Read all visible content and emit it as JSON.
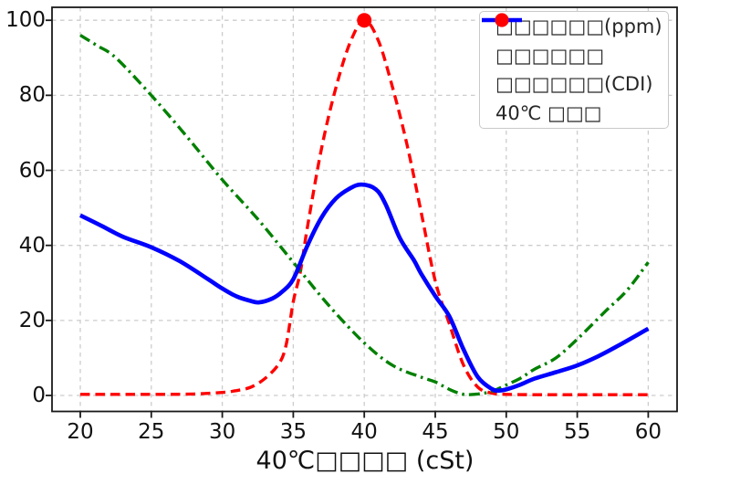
{
  "chart_data": {
    "type": "line",
    "xlabel": "40℃□□□□ (cSt)",
    "x_ticks": [
      "20",
      "25",
      "30",
      "35",
      "40",
      "45",
      "50",
      "55",
      "60"
    ],
    "y_ticks": [
      "0",
      "20",
      "40",
      "60",
      "80",
      "100"
    ],
    "xlim": [
      18,
      62
    ],
    "ylim": [
      -4,
      103.5
    ],
    "grid": true,
    "grid_color": "#cccccc",
    "legend_position": "upper-right",
    "series": [
      {
        "name": "□□□□□□(ppm)",
        "color": "#ff0000",
        "linestyle": "dashed",
        "points": [
          [
            20,
            0.3
          ],
          [
            22,
            0.3
          ],
          [
            24,
            0.3
          ],
          [
            26,
            0.3
          ],
          [
            28,
            0.4
          ],
          [
            30,
            0.8
          ],
          [
            31,
            1.3
          ],
          [
            32,
            2.2
          ],
          [
            33,
            4.5
          ],
          [
            34,
            8.5
          ],
          [
            34.5,
            13.5
          ],
          [
            35,
            25
          ],
          [
            35.5,
            33
          ],
          [
            36,
            45
          ],
          [
            37,
            66
          ],
          [
            38,
            82
          ],
          [
            39,
            94
          ],
          [
            40,
            100
          ],
          [
            41,
            94.5
          ],
          [
            42,
            82
          ],
          [
            43,
            67
          ],
          [
            44,
            49
          ],
          [
            45,
            30.5
          ],
          [
            46,
            19
          ],
          [
            47,
            8
          ],
          [
            48,
            2.2
          ],
          [
            49,
            0.6
          ],
          [
            50,
            0.3
          ],
          [
            52,
            0.2
          ],
          [
            55,
            0.2
          ],
          [
            58,
            0.2
          ],
          [
            60,
            0.2
          ]
        ]
      },
      {
        "name": "□□□□□□",
        "color": "#008000",
        "linestyle": "dashdot",
        "points": [
          [
            20,
            96
          ],
          [
            21.2,
            93.2
          ],
          [
            22.5,
            90
          ],
          [
            25,
            80
          ],
          [
            27.5,
            69
          ],
          [
            30,
            57.5
          ],
          [
            32.5,
            47
          ],
          [
            35,
            35.5
          ],
          [
            37.5,
            24
          ],
          [
            40,
            14
          ],
          [
            42,
            8
          ],
          [
            44,
            4.9
          ],
          [
            45,
            3.6
          ],
          [
            46,
            1.6
          ],
          [
            47,
            0.3
          ],
          [
            48,
            0.4
          ],
          [
            49,
            1.1
          ],
          [
            50,
            2.8
          ],
          [
            51,
            4.6
          ],
          [
            52,
            7
          ],
          [
            53.5,
            10
          ],
          [
            55,
            15
          ],
          [
            57,
            22.5
          ],
          [
            58.5,
            28
          ],
          [
            60,
            35.5
          ]
        ]
      },
      {
        "name": "□□□□□□(CDI)",
        "color": "#0000ff",
        "linestyle": "solid",
        "points": [
          [
            20,
            48
          ],
          [
            21.5,
            45.2
          ],
          [
            23,
            42.3
          ],
          [
            25,
            39.5
          ],
          [
            27,
            35.8
          ],
          [
            29,
            31
          ],
          [
            30,
            28.5
          ],
          [
            31,
            26.4
          ],
          [
            32,
            25.2
          ],
          [
            32.6,
            24.8
          ],
          [
            33.5,
            25.8
          ],
          [
            34.2,
            27.6
          ],
          [
            35,
            31
          ],
          [
            36,
            40
          ],
          [
            37,
            47.5
          ],
          [
            38,
            52.5
          ],
          [
            39,
            55.2
          ],
          [
            39.8,
            56.2
          ],
          [
            40.8,
            55
          ],
          [
            41.5,
            51
          ],
          [
            42.5,
            42
          ],
          [
            43.5,
            36
          ],
          [
            44,
            32.5
          ],
          [
            45,
            26.5
          ],
          [
            46,
            21
          ],
          [
            47,
            12.2
          ],
          [
            48,
            4.9
          ],
          [
            49,
            1.7
          ],
          [
            49.5,
            1.3
          ],
          [
            50,
            1.6
          ],
          [
            51,
            2.9
          ],
          [
            52,
            4.5
          ],
          [
            53.5,
            6.2
          ],
          [
            55,
            8
          ],
          [
            56.5,
            10.5
          ],
          [
            58,
            13.5
          ],
          [
            60,
            17.8
          ]
        ]
      }
    ],
    "marker": {
      "label": "40℃ □□□",
      "x": 40,
      "y": 100,
      "color": "#ff0000",
      "radius": 8
    }
  }
}
